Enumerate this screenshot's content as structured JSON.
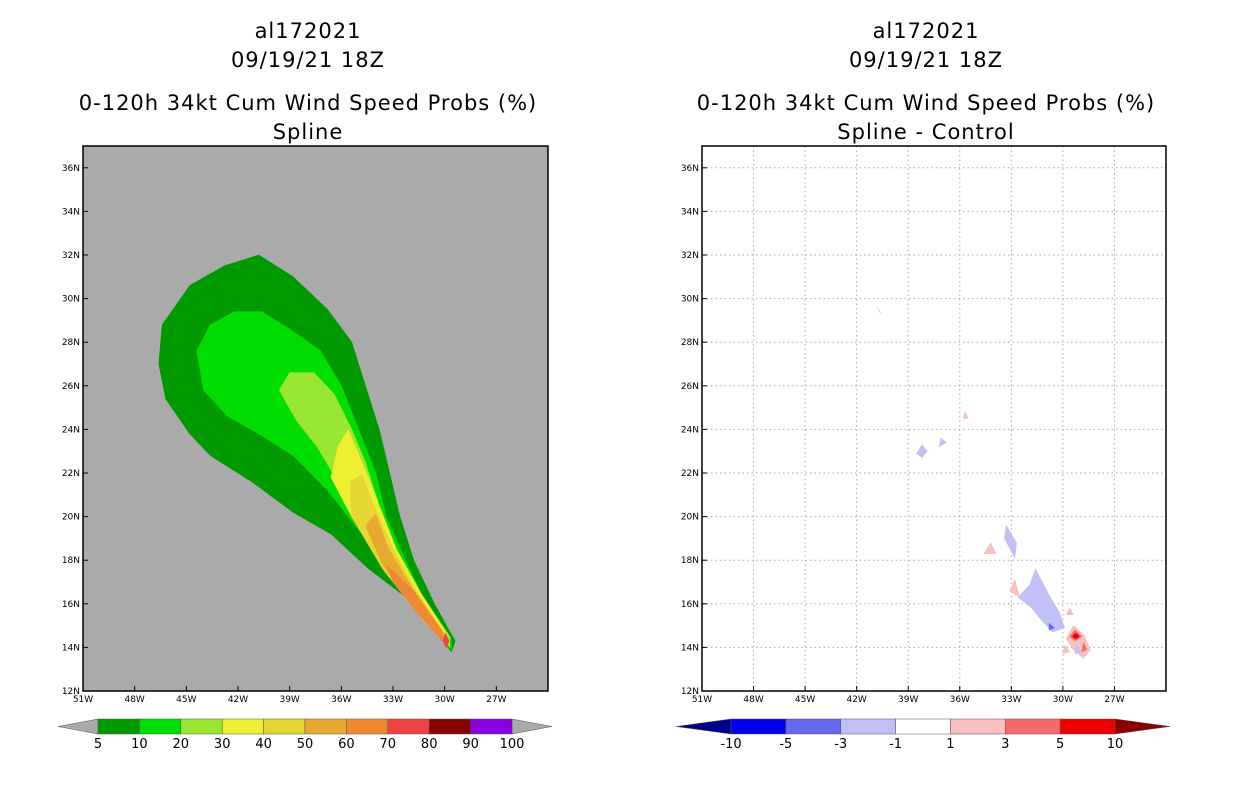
{
  "chart_data": [
    {
      "type": "heatmap",
      "storm_id": "al172021",
      "datetime": "09/19/21 18Z",
      "title": "0-120h 34kt Cum Wind Speed Probs (%)",
      "subtitle": "Spline",
      "xlabel": "",
      "ylabel": "",
      "xlim": [
        -51,
        -24
      ],
      "ylim": [
        12,
        37
      ],
      "x_ticks": [
        "51W",
        "48W",
        "45W",
        "42W",
        "39W",
        "36W",
        "33W",
        "30W",
        "27W"
      ],
      "y_ticks": [
        "12N",
        "14N",
        "16N",
        "18N",
        "20N",
        "22N",
        "24N",
        "26N",
        "28N",
        "30N",
        "32N",
        "34N",
        "36N"
      ],
      "grid": false,
      "background_color": "#aaaaaa",
      "colorbar": {
        "labels": [
          "5",
          "10",
          "20",
          "30",
          "40",
          "50",
          "60",
          "70",
          "80",
          "90",
          "100"
        ],
        "colors": [
          "#009900",
          "#00dd00",
          "#99e633",
          "#eeee33",
          "#e6d633",
          "#e6aa33",
          "#ee8833",
          "#ee4444",
          "#880000",
          "#8800dd"
        ],
        "end_color": "#aaaaaa"
      },
      "contours": [
        {
          "level": 5,
          "color": "#009900",
          "polygon": [
            [
              -29.6,
              13.8
            ],
            [
              -29.4,
              14.3
            ],
            [
              -30.6,
              16
            ],
            [
              -31.8,
              18
            ],
            [
              -32.6,
              20
            ],
            [
              -33.2,
              22
            ],
            [
              -33.8,
              24
            ],
            [
              -34.6,
              26
            ],
            [
              -35.4,
              28
            ],
            [
              -36.8,
              29.5
            ],
            [
              -38.8,
              31
            ],
            [
              -40.8,
              32
            ],
            [
              -42.8,
              31.5
            ],
            [
              -44.8,
              30.6
            ],
            [
              -46.4,
              28.8
            ],
            [
              -46.6,
              27
            ],
            [
              -46.2,
              25.4
            ],
            [
              -44.8,
              23.8
            ],
            [
              -43.6,
              22.8
            ],
            [
              -41.2,
              21.6
            ],
            [
              -38.8,
              20.2
            ],
            [
              -36.6,
              19.2
            ],
            [
              -34.4,
              17.6
            ],
            [
              -32.4,
              16.4
            ],
            [
              -30.4,
              14.6
            ]
          ]
        },
        {
          "level": 10,
          "color": "#00dd00",
          "polygon": [
            [
              -29.6,
              13.9
            ],
            [
              -29.6,
              14.4
            ],
            [
              -31.2,
              16.2
            ],
            [
              -32.4,
              18.2
            ],
            [
              -33.4,
              20
            ],
            [
              -34,
              22
            ],
            [
              -35,
              24
            ],
            [
              -36,
              26
            ],
            [
              -37.2,
              27.6
            ],
            [
              -39,
              28.6
            ],
            [
              -40.6,
              29.4
            ],
            [
              -42.2,
              29.4
            ],
            [
              -43.6,
              28.8
            ],
            [
              -44.4,
              27.6
            ],
            [
              -44,
              25.8
            ],
            [
              -42.6,
              24.6
            ],
            [
              -40.8,
              23.8
            ],
            [
              -38.8,
              22.8
            ],
            [
              -36.8,
              21.2
            ],
            [
              -34.6,
              19
            ],
            [
              -32.6,
              16.8
            ],
            [
              -30.4,
              14.6
            ]
          ]
        },
        {
          "level": 20,
          "color": "#99e633",
          "polygon": [
            [
              -29.7,
              14
            ],
            [
              -29.7,
              14.5
            ],
            [
              -31.4,
              16.5
            ],
            [
              -32.8,
              18.5
            ],
            [
              -33.8,
              20.5
            ],
            [
              -34.6,
              22.5
            ],
            [
              -35.4,
              24
            ],
            [
              -36.4,
              25.6
            ],
            [
              -37.6,
              26.6
            ],
            [
              -39,
              26.6
            ],
            [
              -39.6,
              25.8
            ],
            [
              -38.6,
              24.4
            ],
            [
              -37.4,
              23.2
            ],
            [
              -36.2,
              21.6
            ],
            [
              -34.8,
              19.6
            ],
            [
              -32.8,
              17.2
            ],
            [
              -30.6,
              14.8
            ]
          ]
        },
        {
          "level": 30,
          "color": "#eeee33",
          "polygon": [
            [
              -29.8,
              14.1
            ],
            [
              -29.8,
              14.5
            ],
            [
              -31.4,
              16.5
            ],
            [
              -32.8,
              18.5
            ],
            [
              -33.8,
              20.5
            ],
            [
              -34.8,
              22.5
            ],
            [
              -35.6,
              24
            ],
            [
              -36.2,
              23.2
            ],
            [
              -36.6,
              21.8
            ],
            [
              -35.4,
              20
            ],
            [
              -33.4,
              17.6
            ],
            [
              -31,
              15.2
            ]
          ]
        },
        {
          "level": 40,
          "color": "#e6d633",
          "polygon": [
            [
              -29.8,
              14.1
            ],
            [
              -29.9,
              14.5
            ],
            [
              -31.6,
              16.5
            ],
            [
              -33,
              18.5
            ],
            [
              -34.1,
              20.5
            ],
            [
              -34.8,
              21.9
            ],
            [
              -35.5,
              21.6
            ],
            [
              -35.4,
              20
            ],
            [
              -33.6,
              17.6
            ],
            [
              -31.2,
              15.2
            ]
          ]
        },
        {
          "level": 50,
          "color": "#e6aa33",
          "polygon": [
            [
              -29.8,
              14.1
            ],
            [
              -30,
              14.6
            ],
            [
              -31.8,
              16.6
            ],
            [
              -33.3,
              18.6
            ],
            [
              -34,
              20.1
            ],
            [
              -34.6,
              19.6
            ],
            [
              -33.6,
              17.8
            ],
            [
              -31.4,
              15.4
            ]
          ]
        },
        {
          "level": 60,
          "color": "#ee8833",
          "polygon": [
            [
              -29.9,
              14.1
            ],
            [
              -30.2,
              14.8
            ],
            [
              -31.8,
              16.6
            ],
            [
              -33.4,
              17.8
            ],
            [
              -33,
              17
            ],
            [
              -31.6,
              15.6
            ]
          ]
        },
        {
          "level": 70,
          "color": "#ee4444",
          "polygon": [
            [
              -29.9,
              14.0
            ],
            [
              -29.75,
              14.3
            ],
            [
              -29.95,
              14.65
            ],
            [
              -30.1,
              14.3
            ]
          ]
        }
      ]
    },
    {
      "type": "heatmap",
      "storm_id": "al172021",
      "datetime": "09/19/21 18Z",
      "title": "0-120h 34kt Cum Wind Speed Probs (%)",
      "subtitle": "Spline - Control",
      "xlabel": "",
      "ylabel": "",
      "xlim": [
        -51,
        -24
      ],
      "ylim": [
        12,
        37
      ],
      "x_ticks": [
        "51W",
        "48W",
        "45W",
        "42W",
        "39W",
        "36W",
        "33W",
        "30W",
        "27W"
      ],
      "y_ticks": [
        "12N",
        "14N",
        "16N",
        "18N",
        "20N",
        "22N",
        "24N",
        "26N",
        "28N",
        "30N",
        "32N",
        "34N",
        "36N"
      ],
      "grid": true,
      "background_color": "#ffffff",
      "colorbar": {
        "labels": [
          "-10",
          "-5",
          "-3",
          "-1",
          "1",
          "3",
          "5",
          "10"
        ],
        "colors": [
          "#0000ee",
          "#6666ee",
          "#c0c0f6",
          "#ffffff",
          "#f8c0c0",
          "#f86a6a",
          "#ee0000"
        ],
        "low_end_color": "#000088",
        "high_end_color": "#880000"
      },
      "contours": [
        {
          "level": 1,
          "color": "#f8c0c0",
          "polygon": [
            [
              -40.8,
              29.6
            ],
            [
              -40.6,
              29.3
            ],
            [
              -40.7,
              29.5
            ]
          ]
        },
        {
          "level": 1,
          "color": "#f8c0c0",
          "polygon": [
            [
              -35.7,
              24.8
            ],
            [
              -35.5,
              24.5
            ],
            [
              -35.8,
              24.5
            ]
          ]
        },
        {
          "level": -1,
          "color": "#c0c0f6",
          "polygon": [
            [
              -38.2,
              23.3
            ],
            [
              -37.9,
              23.0
            ],
            [
              -38.2,
              22.7
            ],
            [
              -38.5,
              22.9
            ]
          ]
        },
        {
          "level": -1,
          "color": "#c0c0f6",
          "polygon": [
            [
              -37.1,
              23.6
            ],
            [
              -36.8,
              23.4
            ],
            [
              -37.2,
              23.2
            ]
          ]
        },
        {
          "level": -1,
          "color": "#c0c0f6",
          "polygon": [
            [
              -33.3,
              19.6
            ],
            [
              -32.7,
              18.8
            ],
            [
              -32.8,
              18.1
            ],
            [
              -33.4,
              19.0
            ]
          ]
        },
        {
          "level": 1,
          "color": "#f8c0c0",
          "polygon": [
            [
              -34.2,
              18.8
            ],
            [
              -33.9,
              18.3
            ],
            [
              -34.6,
              18.3
            ]
          ]
        },
        {
          "level": 1,
          "color": "#f8c0c0",
          "polygon": [
            [
              -32.8,
              17.1
            ],
            [
              -32.5,
              16.3
            ],
            [
              -33.1,
              16.6
            ]
          ]
        },
        {
          "level": -1,
          "color": "#c0c0f6",
          "polygon": [
            [
              -31.6,
              17.6
            ],
            [
              -30.8,
              16.4
            ],
            [
              -30.2,
              15.6
            ],
            [
              -29.9,
              14.9
            ],
            [
              -30.6,
              14.7
            ],
            [
              -31.2,
              15.2
            ],
            [
              -31.8,
              15.8
            ],
            [
              -32.6,
              16.3
            ],
            [
              -31.9,
              16.9
            ]
          ]
        },
        {
          "level": -3,
          "color": "#6666ee",
          "polygon": [
            [
              -30.8,
              15.1
            ],
            [
              -30.5,
              14.9
            ],
            [
              -30.8,
              14.8
            ]
          ]
        },
        {
          "level": 1,
          "color": "#f8c0c0",
          "polygon": [
            [
              -29.6,
              15.8
            ],
            [
              -29.4,
              15.5
            ],
            [
              -29.8,
              15.5
            ]
          ]
        },
        {
          "level": 1,
          "color": "#f8c0c0",
          "polygon": [
            [
              -29.4,
              15.0
            ],
            [
              -28.8,
              14.6
            ],
            [
              -28.4,
              13.9
            ],
            [
              -28.8,
              13.5
            ],
            [
              -29.4,
              13.9
            ],
            [
              -29.8,
              14.4
            ]
          ]
        },
        {
          "level": 3,
          "color": "#f86a6a",
          "polygon": [
            [
              -29.3,
              14.8
            ],
            [
              -28.9,
              14.5
            ],
            [
              -29.3,
              14.3
            ],
            [
              -29.6,
              14.5
            ]
          ]
        },
        {
          "level": 5,
          "color": "#ee0000",
          "polygon": [
            [
              -29.25,
              14.65
            ],
            [
              -29.05,
              14.5
            ],
            [
              -29.25,
              14.4
            ],
            [
              -29.45,
              14.5
            ]
          ]
        },
        {
          "level": 3,
          "color": "#f86a6a",
          "polygon": [
            [
              -28.8,
              14.2
            ],
            [
              -28.6,
              13.9
            ],
            [
              -28.9,
              13.8
            ]
          ]
        },
        {
          "level": 1,
          "color": "#f8c0c0",
          "polygon": [
            [
              -29.9,
              14.1
            ],
            [
              -29.6,
              13.8
            ],
            [
              -30.0,
              13.7
            ]
          ]
        },
        {
          "level": -1,
          "color": "#c0c0f6",
          "polygon": [
            [
              -29.2,
              14.1
            ],
            [
              -28.9,
              13.8
            ],
            [
              -29.3,
              13.7
            ]
          ]
        }
      ]
    }
  ]
}
